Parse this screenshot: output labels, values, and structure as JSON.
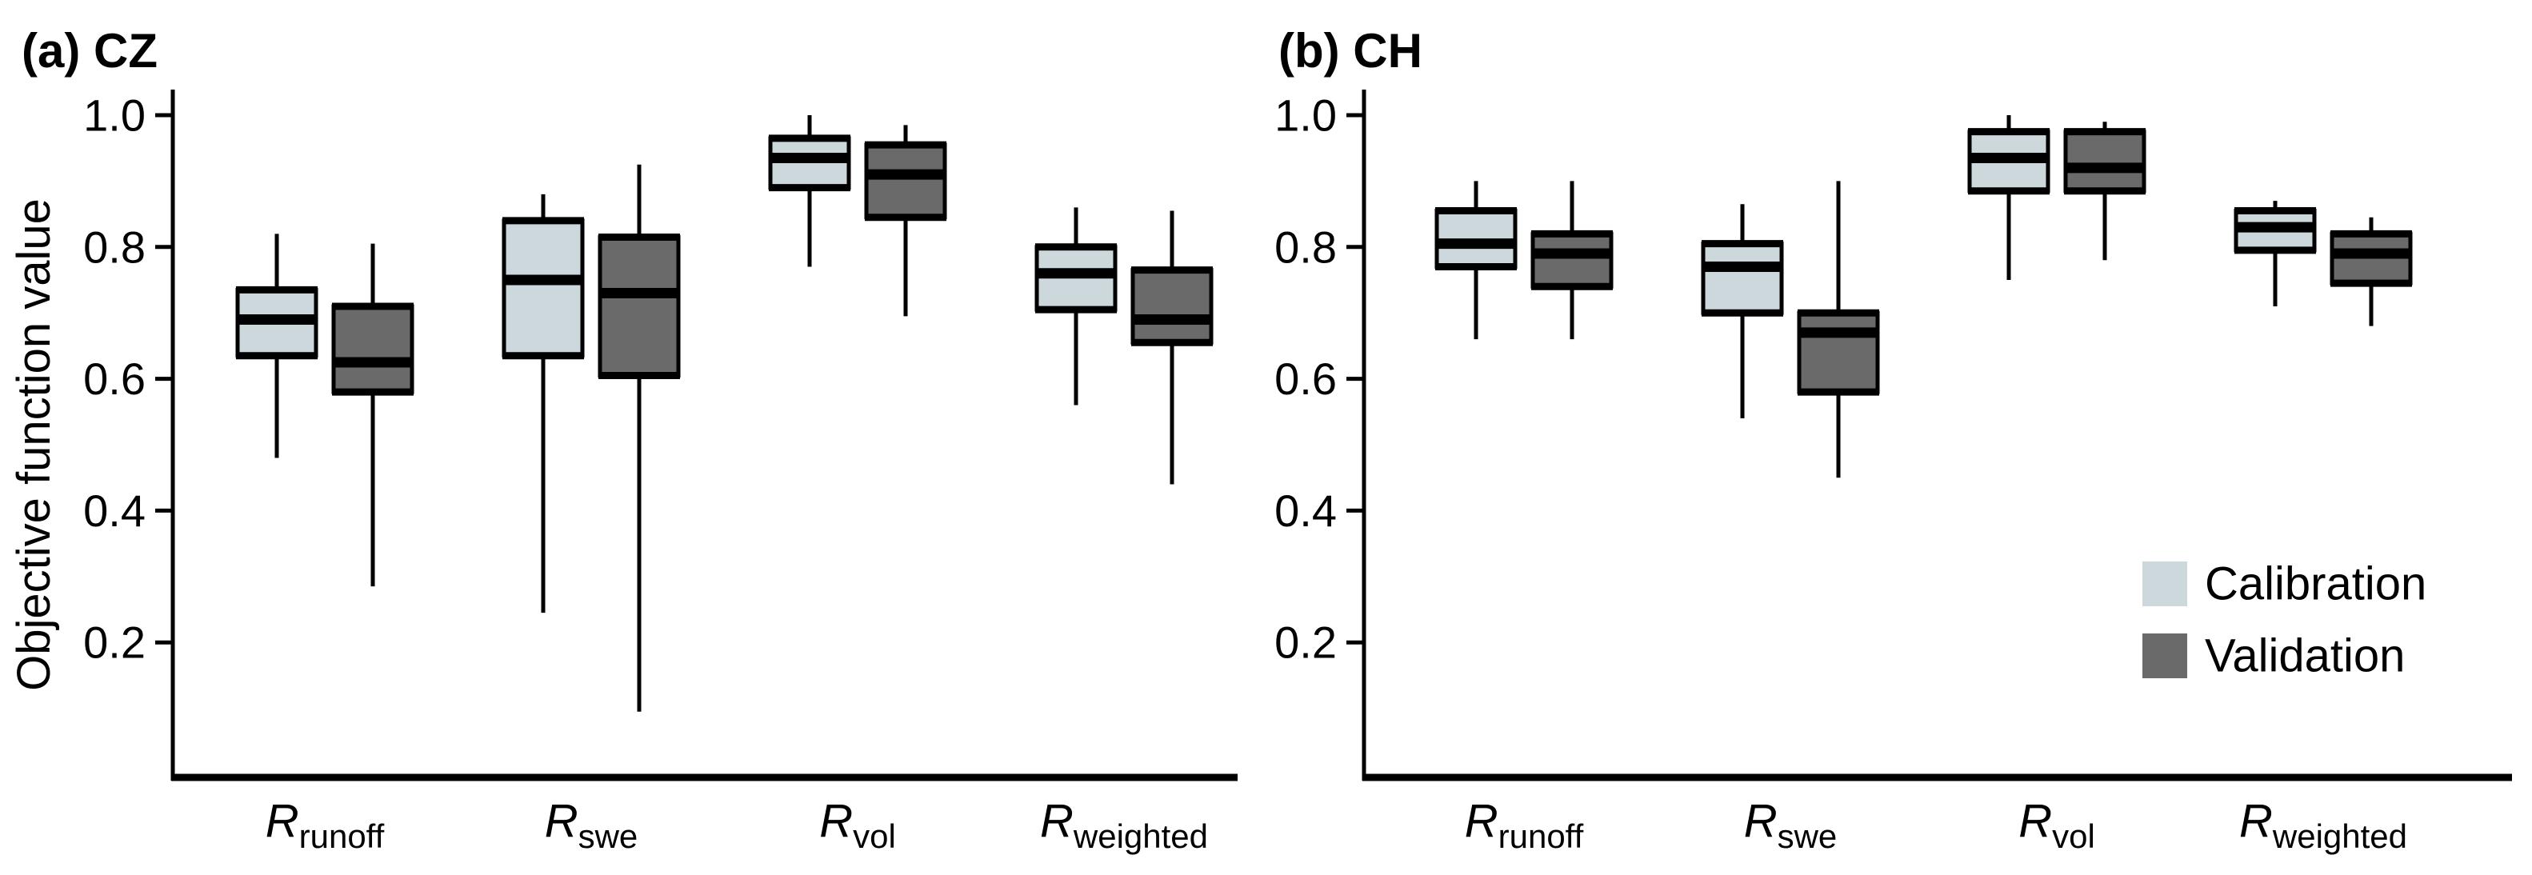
{
  "figure": {
    "ylabel": "Objective function value",
    "background": "#ffffff",
    "text_color": "#000000"
  },
  "legend": {
    "position": "inside lower-right of panel (b)",
    "items": [
      {
        "label": "Calibration",
        "color": "#cdd8dc"
      },
      {
        "label": "Validation",
        "color": "#6a6a6a"
      }
    ]
  },
  "chart_data": [
    {
      "type": "boxplot",
      "title": "(a) CZ",
      "ylabel": "Objective function value",
      "xlabel": "",
      "ylim": [
        0,
        1.04
      ],
      "grid": false,
      "yticks": [
        1.0,
        0.8,
        0.6,
        0.4,
        0.2
      ],
      "ytick_labels": [
        "1.0",
        "0.8",
        "0.6",
        "0.4",
        "0.2"
      ],
      "categories": [
        {
          "base": "R",
          "sub": "runoff"
        },
        {
          "base": "R",
          "sub": "swe"
        },
        {
          "base": "R",
          "sub": "vol"
        },
        {
          "base": "R",
          "sub": "weighted"
        }
      ],
      "series": [
        {
          "name": "Calibration",
          "color": "#cdd8dc",
          "boxes": [
            {
              "whisker_low": 0.48,
              "q1": 0.635,
              "median": 0.69,
              "q3": 0.735,
              "whisker_high": 0.82
            },
            {
              "whisker_low": 0.245,
              "q1": 0.635,
              "median": 0.75,
              "q3": 0.84,
              "whisker_high": 0.88
            },
            {
              "whisker_low": 0.77,
              "q1": 0.89,
              "median": 0.935,
              "q3": 0.965,
              "whisker_high": 1.0
            },
            {
              "whisker_low": 0.56,
              "q1": 0.705,
              "median": 0.76,
              "q3": 0.8,
              "whisker_high": 0.86
            }
          ]
        },
        {
          "name": "Validation",
          "color": "#6a6a6a",
          "boxes": [
            {
              "whisker_low": 0.285,
              "q1": 0.58,
              "median": 0.625,
              "q3": 0.71,
              "whisker_high": 0.805
            },
            {
              "whisker_low": 0.095,
              "q1": 0.605,
              "median": 0.73,
              "q3": 0.815,
              "whisker_high": 0.925
            },
            {
              "whisker_low": 0.695,
              "q1": 0.845,
              "median": 0.91,
              "q3": 0.955,
              "whisker_high": 0.985
            },
            {
              "whisker_low": 0.44,
              "q1": 0.655,
              "median": 0.69,
              "q3": 0.765,
              "whisker_high": 0.855
            }
          ]
        }
      ]
    },
    {
      "type": "boxplot",
      "title": "(b) CH",
      "ylabel": "",
      "xlabel": "",
      "ylim": [
        0,
        1.04
      ],
      "grid": false,
      "yticks": [
        1.0,
        0.8,
        0.6,
        0.4,
        0.2
      ],
      "ytick_labels": [
        "1.0",
        "0.8",
        "0.6",
        "0.4",
        "0.2"
      ],
      "categories": [
        {
          "base": "R",
          "sub": "runoff"
        },
        {
          "base": "R",
          "sub": "swe"
        },
        {
          "base": "R",
          "sub": "vol"
        },
        {
          "base": "R",
          "sub": "weighted"
        }
      ],
      "series": [
        {
          "name": "Calibration",
          "color": "#cdd8dc",
          "boxes": [
            {
              "whisker_low": 0.66,
              "q1": 0.77,
              "median": 0.805,
              "q3": 0.855,
              "whisker_high": 0.9
            },
            {
              "whisker_low": 0.54,
              "q1": 0.7,
              "median": 0.77,
              "q3": 0.805,
              "whisker_high": 0.865
            },
            {
              "whisker_low": 0.75,
              "q1": 0.885,
              "median": 0.935,
              "q3": 0.975,
              "whisker_high": 1.0
            },
            {
              "whisker_low": 0.71,
              "q1": 0.795,
              "median": 0.83,
              "q3": 0.855,
              "whisker_high": 0.87
            }
          ]
        },
        {
          "name": "Validation",
          "color": "#6a6a6a",
          "boxes": [
            {
              "whisker_low": 0.66,
              "q1": 0.74,
              "median": 0.79,
              "q3": 0.82,
              "whisker_high": 0.9
            },
            {
              "whisker_low": 0.45,
              "q1": 0.58,
              "median": 0.67,
              "q3": 0.7,
              "whisker_high": 0.9
            },
            {
              "whisker_low": 0.78,
              "q1": 0.885,
              "median": 0.92,
              "q3": 0.975,
              "whisker_high": 0.99
            },
            {
              "whisker_low": 0.68,
              "q1": 0.745,
              "median": 0.79,
              "q3": 0.82,
              "whisker_high": 0.845
            }
          ]
        }
      ]
    }
  ]
}
